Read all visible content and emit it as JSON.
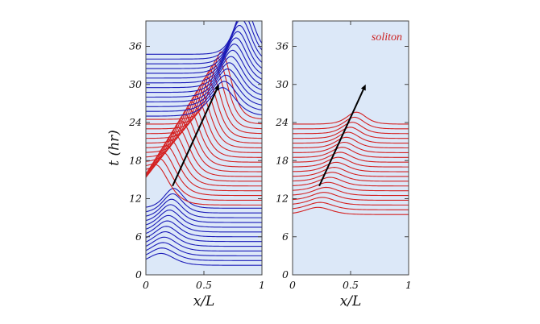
{
  "chart_data": [
    {
      "type": "line",
      "title": "",
      "xlabel": "x/L",
      "ylabel": "t (hr)",
      "xlim": [
        0,
        1
      ],
      "ylim": [
        0,
        40
      ],
      "xticks": [
        "0",
        "0.5",
        "1"
      ],
      "yticks": [
        "0",
        "6",
        "12",
        "18",
        "24",
        "30",
        "36"
      ],
      "background": "#dce8f8",
      "series": [
        {
          "color": "#1a1ab8",
          "t_start": 1.5,
          "t_end": 10.5,
          "step": 0.75,
          "crest_x_start": 0.13,
          "crest_x_end": 0.24,
          "base_amplitude": 2.5
        },
        {
          "color": "#d42020",
          "t_start": 11.0,
          "t_end": 24.5,
          "step": 0.75,
          "crest_x_start": 0.08,
          "crest_x_end": 0.65,
          "base_amplitude": 8.5
        },
        {
          "color": "#1a1ab8",
          "t_start": 25.0,
          "t_end": 35.0,
          "step": 0.75,
          "crest_x_start": 0.66,
          "crest_x_end": 0.85,
          "base_amplitude": 6.0
        }
      ],
      "arrow": {
        "from": [
          0.23,
          14
        ],
        "to": [
          0.63,
          30
        ],
        "color": "#000000"
      }
    },
    {
      "type": "line",
      "title": "",
      "xlabel": "x/L",
      "ylabel": "",
      "xlim": [
        0,
        1
      ],
      "ylim": [
        0,
        40
      ],
      "xticks": [
        "0",
        "0.5",
        "1"
      ],
      "yticks": [
        "0",
        "6",
        "12",
        "18",
        "24",
        "30",
        "36"
      ],
      "background": "#dce8f8",
      "annotation": {
        "text": "soliton",
        "color": "#cc2020"
      },
      "series": [
        {
          "color": "#d42020",
          "t_start": 9.5,
          "t_end": 24.0,
          "step": 0.75,
          "crest_x_start": 0.22,
          "crest_x_end": 0.55,
          "base_amplitude": 1.5
        }
      ],
      "arrow": {
        "from": [
          0.23,
          14
        ],
        "to": [
          0.63,
          30
        ],
        "color": "#000000"
      }
    }
  ]
}
